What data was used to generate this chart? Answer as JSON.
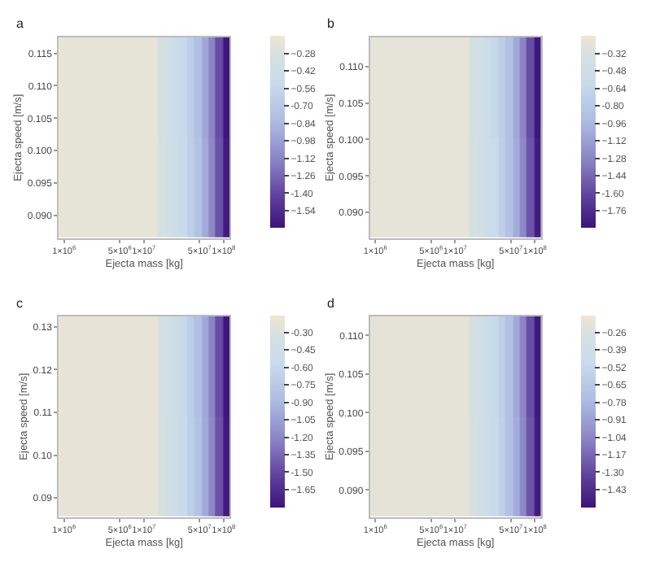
{
  "chart_data": [
    {
      "type": "heatmap",
      "title": "a",
      "xlabel": "Ejecta mass [kg]",
      "ylabel": "Ejecta speed [m/s]",
      "log": "x",
      "x": [
        950000,
        1170000,
        1440000,
        1770000,
        2170000,
        2660000,
        3270000,
        4020000,
        4930000,
        6060000,
        7440000,
        9130000,
        11200000,
        13800000,
        16900000,
        20800000,
        25500000,
        31300000,
        38500000,
        47200000,
        58000000,
        71200000,
        87500000,
        107000000
      ],
      "xlim": [
        860000,
        119000000
      ],
      "xticks": [
        {
          "value": 1000000,
          "label": "1×10$^{6}$"
        },
        {
          "value": 5000000,
          "label": "5×10$^{6}$"
        },
        {
          "value": 10000000,
          "label": "1×10$^{7}$"
        },
        {
          "value": 50000000,
          "label": "5×10$^{7}$"
        },
        {
          "value": 100000000,
          "label": "1×10$^{8}$"
        }
      ],
      "ylim": [
        0.0865,
        0.1175
      ],
      "yticks": [
        {
          "value": 0.09,
          "label": "0.090"
        },
        0.095,
        {
          "value": 0.1,
          "label": "0.100"
        },
        0.105,
        {
          "value": 0.11,
          "label": "0.110"
        },
        0.115
      ],
      "cells": [
        [
          -0.2,
          -0.2,
          -0.2,
          -0.2,
          -0.2,
          -0.2,
          -0.2,
          -0.2,
          -0.2,
          -0.2,
          -0.2,
          -0.2,
          -0.2,
          -0.2,
          -0.33,
          -0.39,
          -0.46,
          -0.54,
          -0.65,
          -0.78,
          -0.94,
          -1.13,
          -1.37,
          -1.66
        ],
        [
          -0.2,
          -0.2,
          -0.2,
          -0.2,
          -0.2,
          -0.2,
          -0.2,
          -0.2,
          -0.2,
          -0.2,
          -0.2,
          -0.2,
          -0.2,
          -0.2,
          -0.31,
          -0.37,
          -0.44,
          -0.52,
          -0.63,
          -0.76,
          -0.92,
          -1.11,
          -1.35,
          -1.64
        ]
      ],
      "clim": [
        -1.68,
        -0.14
      ],
      "cticks": [
        -0.28,
        -0.42,
        -0.56,
        {
          "value": -0.7,
          "label": "-0.70"
        },
        -0.84,
        -0.98,
        -1.12,
        -1.26,
        {
          "value": -1.4,
          "label": "-1.40"
        },
        -1.54
      ]
    },
    {
      "type": "heatmap",
      "title": "b",
      "xlabel": "Ejecta mass [kg]",
      "ylabel": "Ejecta speed [m/s]",
      "log": "x",
      "x": [
        950000,
        1170000,
        1440000,
        1770000,
        2170000,
        2660000,
        3270000,
        4020000,
        4930000,
        6060000,
        7440000,
        9130000,
        11200000,
        13800000,
        16900000,
        20800000,
        25500000,
        31300000,
        38500000,
        47200000,
        58000000,
        71200000,
        87500000,
        107000000
      ],
      "xlim": [
        860000,
        119000000
      ],
      "xticks": [
        {
          "value": 1000000,
          "label": "1×10$^{6}$"
        },
        {
          "value": 5000000,
          "label": "5×10$^{6}$"
        },
        {
          "value": 10000000,
          "label": "1×10$^{7}$"
        },
        {
          "value": 50000000,
          "label": "5×10$^{7}$"
        },
        {
          "value": 100000000,
          "label": "1×10$^{8}$"
        }
      ],
      "ylim": [
        0.0865,
        0.114
      ],
      "yticks": [
        {
          "value": 0.09,
          "label": "0.090"
        },
        0.095,
        {
          "value": 0.1,
          "label": "0.100"
        },
        0.105,
        {
          "value": 0.11,
          "label": "0.110"
        }
      ],
      "cells": [
        [
          -0.23,
          -0.23,
          -0.23,
          -0.23,
          -0.23,
          -0.23,
          -0.23,
          -0.23,
          -0.23,
          -0.23,
          -0.23,
          -0.23,
          -0.23,
          -0.23,
          -0.38,
          -0.45,
          -0.53,
          -0.62,
          -0.74,
          -0.89,
          -1.07,
          -1.29,
          -1.57,
          -1.9
        ],
        [
          -0.23,
          -0.23,
          -0.23,
          -0.23,
          -0.23,
          -0.23,
          -0.23,
          -0.23,
          -0.23,
          -0.23,
          -0.23,
          -0.23,
          -0.23,
          -0.23,
          -0.35,
          -0.42,
          -0.5,
          -0.59,
          -0.72,
          -0.87,
          -1.05,
          -1.27,
          -1.54,
          -1.87
        ]
      ],
      "clim": [
        -1.92,
        -0.16
      ],
      "cticks": [
        -0.32,
        -0.48,
        -0.64,
        {
          "value": -0.8,
          "label": "-0.80"
        },
        -0.96,
        -1.12,
        -1.28,
        -1.44,
        {
          "value": -1.6,
          "label": "-1.60"
        },
        -1.76
      ]
    },
    {
      "type": "heatmap",
      "title": "c",
      "xlabel": "Ejecta mass [kg]",
      "ylabel": "Ejecta speed [m/s]",
      "log": "x",
      "x": [
        950000,
        1170000,
        1440000,
        1770000,
        2170000,
        2660000,
        3270000,
        4020000,
        4930000,
        6060000,
        7440000,
        9130000,
        11200000,
        13800000,
        16900000,
        20800000,
        25500000,
        31300000,
        38500000,
        47200000,
        58000000,
        71200000,
        87500000,
        107000000
      ],
      "xlim": [
        860000,
        119000000
      ],
      "xticks": [
        {
          "value": 1000000,
          "label": "1×10$^{6}$"
        },
        {
          "value": 5000000,
          "label": "5×10$^{6}$"
        },
        {
          "value": 10000000,
          "label": "1×10$^{7}$"
        },
        {
          "value": 50000000,
          "label": "5×10$^{7}$"
        },
        {
          "value": 100000000,
          "label": "1×10$^{8}$"
        }
      ],
      "ylim": [
        0.0855,
        0.1325
      ],
      "yticks": [
        0.09,
        {
          "value": 0.1,
          "label": "0.10"
        },
        0.11,
        0.12,
        0.13
      ],
      "cells": [
        [
          -0.21,
          -0.21,
          -0.21,
          -0.21,
          -0.21,
          -0.21,
          -0.21,
          -0.21,
          -0.21,
          -0.21,
          -0.21,
          -0.21,
          -0.21,
          -0.21,
          -0.35,
          -0.42,
          -0.49,
          -0.58,
          -0.7,
          -0.84,
          -1.01,
          -1.21,
          -1.47,
          -1.78
        ],
        [
          -0.21,
          -0.21,
          -0.21,
          -0.21,
          -0.21,
          -0.21,
          -0.21,
          -0.21,
          -0.21,
          -0.21,
          -0.21,
          -0.21,
          -0.21,
          -0.21,
          -0.33,
          -0.4,
          -0.47,
          -0.56,
          -0.68,
          -0.81,
          -0.99,
          -1.19,
          -1.45,
          -1.76
        ]
      ],
      "clim": [
        -1.8,
        -0.15
      ],
      "cticks": [
        {
          "value": -0.3,
          "label": "-0.30"
        },
        -0.45,
        {
          "value": -0.6,
          "label": "-0.60"
        },
        -0.75,
        {
          "value": -0.9,
          "label": "-0.90"
        },
        -1.05,
        {
          "value": -1.2,
          "label": "-1.20"
        },
        -1.35,
        {
          "value": -1.5,
          "label": "-1.50"
        },
        -1.65
      ]
    },
    {
      "type": "heatmap",
      "title": "d",
      "xlabel": "Ejecta mass [kg]",
      "ylabel": "Ejecta speed [m/s]",
      "log": "x",
      "x": [
        950000,
        1170000,
        1440000,
        1770000,
        2170000,
        2660000,
        3270000,
        4020000,
        4930000,
        6060000,
        7440000,
        9130000,
        11200000,
        13800000,
        16900000,
        20800000,
        25500000,
        31300000,
        38500000,
        47200000,
        58000000,
        71200000,
        87500000,
        107000000
      ],
      "xlim": [
        860000,
        119000000
      ],
      "xticks": [
        {
          "value": 1000000,
          "label": "1×10$^{6}$"
        },
        {
          "value": 5000000,
          "label": "5×10$^{6}$"
        },
        {
          "value": 10000000,
          "label": "1×10$^{7}$"
        },
        {
          "value": 50000000,
          "label": "5×10$^{7}$"
        },
        {
          "value": 100000000,
          "label": "1×10$^{8}$"
        }
      ],
      "ylim": [
        0.0865,
        0.1125
      ],
      "yticks": [
        {
          "value": 0.09,
          "label": "0.090"
        },
        0.095,
        {
          "value": 0.1,
          "label": "0.100"
        },
        0.105,
        {
          "value": 0.11,
          "label": "0.110"
        }
      ],
      "cells": [
        [
          -0.19,
          -0.19,
          -0.19,
          -0.19,
          -0.19,
          -0.19,
          -0.19,
          -0.19,
          -0.19,
          -0.19,
          -0.19,
          -0.19,
          -0.19,
          -0.19,
          -0.31,
          -0.36,
          -0.43,
          -0.5,
          -0.6,
          -0.72,
          -0.87,
          -1.05,
          -1.27,
          -1.54
        ],
        [
          -0.19,
          -0.19,
          -0.19,
          -0.19,
          -0.19,
          -0.19,
          -0.19,
          -0.19,
          -0.19,
          -0.19,
          -0.19,
          -0.19,
          -0.19,
          -0.19,
          -0.29,
          -0.34,
          -0.41,
          -0.48,
          -0.58,
          -0.71,
          -0.85,
          -1.03,
          -1.25,
          -1.52
        ]
      ],
      "clim": [
        -1.56,
        -0.13
      ],
      "cticks": [
        -0.26,
        -0.39,
        -0.52,
        -0.65,
        -0.78,
        -0.91,
        -1.04,
        -1.17,
        {
          "value": -1.3,
          "label": "-1.30"
        },
        -1.43
      ]
    }
  ]
}
